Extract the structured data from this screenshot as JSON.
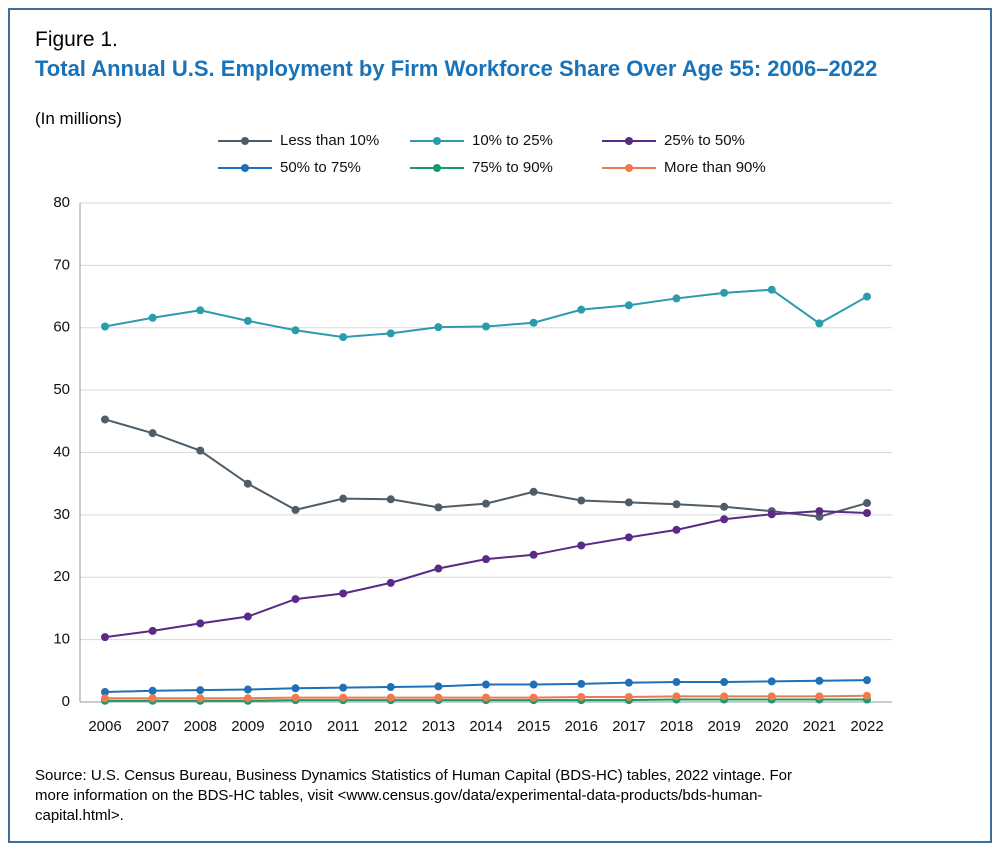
{
  "chart_data": {
    "type": "line",
    "figure_label": "Figure 1.",
    "title": "Total Annual U.S. Employment by Firm Workforce Share Over Age 55: 2006–2022",
    "subtitle": "(In millions)",
    "source": "Source: U.S. Census Bureau, Business Dynamics Statistics of Human Capital (BDS-HC) tables, 2022 vintage. For more information on the BDS-HC tables, visit <www.census.gov/data/experimental-data-products/bds-human-capital.html>.",
    "categories": [
      "2006",
      "2007",
      "2008",
      "2009",
      "2010",
      "2011",
      "2012",
      "2013",
      "2014",
      "2015",
      "2016",
      "2017",
      "2018",
      "2019",
      "2020",
      "2021",
      "2022"
    ],
    "ylim": [
      0,
      80
    ],
    "yticks": [
      0,
      10,
      20,
      30,
      40,
      50,
      60,
      70,
      80
    ],
    "grid": true,
    "legend": "top",
    "series": [
      {
        "name": "Less than 10%",
        "color": "#4e5d68",
        "values": [
          45.3,
          43.1,
          40.3,
          35.0,
          30.8,
          32.6,
          32.5,
          31.2,
          31.8,
          33.7,
          32.3,
          32.0,
          31.7,
          31.3,
          30.6,
          29.7,
          31.9
        ]
      },
      {
        "name": "10% to 25%",
        "color": "#2b9cad",
        "values": [
          60.2,
          61.6,
          62.8,
          61.1,
          59.6,
          58.5,
          59.1,
          60.1,
          60.2,
          60.8,
          62.9,
          63.6,
          64.7,
          65.6,
          66.1,
          60.7,
          65.0
        ]
      },
      {
        "name": "25% to 50%",
        "color": "#5a2a86",
        "values": [
          10.4,
          11.4,
          12.6,
          13.7,
          16.5,
          17.4,
          19.1,
          21.4,
          22.9,
          23.6,
          25.1,
          26.4,
          27.6,
          29.3,
          30.1,
          30.6,
          30.3
        ]
      },
      {
        "name": "50% to 75%",
        "color": "#1f70b6",
        "values": [
          1.6,
          1.8,
          1.9,
          2.0,
          2.2,
          2.3,
          2.4,
          2.5,
          2.8,
          2.8,
          2.9,
          3.1,
          3.2,
          3.2,
          3.3,
          3.4,
          3.5
        ]
      },
      {
        "name": "75% to 90%",
        "color": "#179a6b",
        "values": [
          0.2,
          0.2,
          0.2,
          0.2,
          0.3,
          0.3,
          0.3,
          0.3,
          0.3,
          0.3,
          0.3,
          0.3,
          0.4,
          0.4,
          0.4,
          0.4,
          0.4
        ]
      },
      {
        "name": "More than 90%",
        "color": "#ef7a4f",
        "values": [
          0.6,
          0.6,
          0.6,
          0.6,
          0.7,
          0.7,
          0.7,
          0.7,
          0.7,
          0.7,
          0.8,
          0.8,
          0.9,
          0.9,
          0.9,
          0.9,
          1.0
        ]
      }
    ]
  }
}
